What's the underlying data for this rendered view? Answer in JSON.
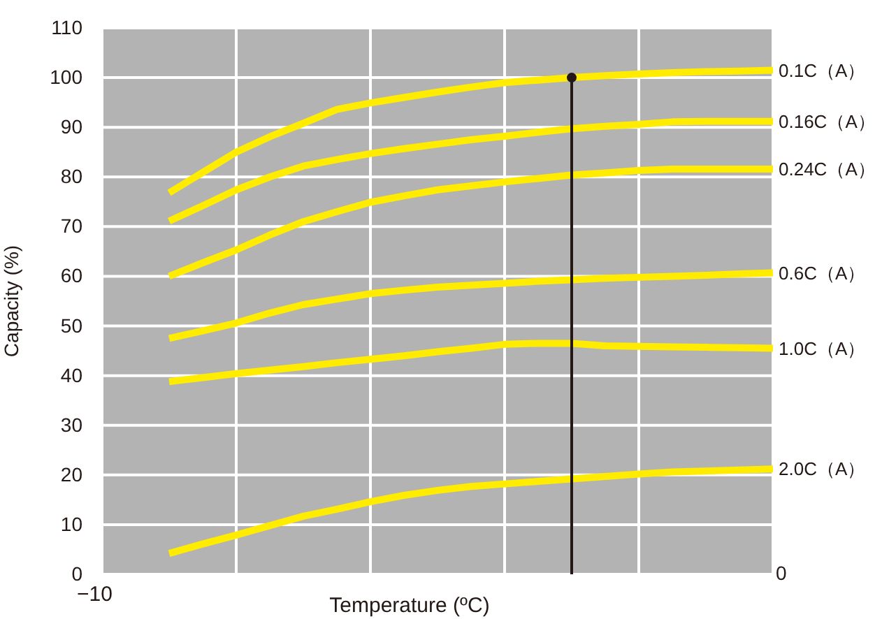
{
  "chart_data": {
    "type": "line",
    "xlabel": "Temperature (ºC)",
    "ylabel": "Capacity (%)",
    "categories": [
      null,
      null,
      null,
      null,
      null,
      null,
      null,
      null,
      null,
      null,
      null,
      null,
      null,
      null,
      null,
      null,
      null,
      null,
      null,
      null,
      null
    ],
    "ylim": [
      0,
      110
    ],
    "yticks": [
      0,
      10,
      20,
      30,
      40,
      50,
      60,
      70,
      80,
      90,
      100,
      110
    ],
    "grid": true,
    "legend": false,
    "marker": "none",
    "line_style": "solid",
    "annotations": [
      "−10",
      "0"
    ],
    "series": [
      {
        "name": "0.1C（A）",
        "color": "#ffec00",
        "values": [
          null,
          null,
          76.8,
          80.9,
          85,
          88.1,
          90.8,
          93.6,
          94.9,
          96,
          97.1,
          98.1,
          99,
          99.5,
          100,
          100.4,
          100.7,
          101,
          101.2,
          101.3,
          101.5
        ]
      },
      {
        "name": "0.16C（A）",
        "color": "#ffec00",
        "values": [
          null,
          null,
          71.1,
          74.2,
          77.4,
          80,
          82.2,
          83.5,
          84.7,
          85.7,
          86.6,
          87.5,
          88.2,
          89,
          89.7,
          90.2,
          90.6,
          91.1,
          91.2,
          91.2,
          91.2
        ]
      },
      {
        "name": "0.24C（A）",
        "color": "#ffec00",
        "values": [
          null,
          null,
          60,
          62.7,
          65.3,
          68.3,
          71,
          73,
          74.9,
          76.2,
          77.4,
          78.2,
          79,
          79.7,
          80.4,
          80.8,
          81.3,
          81.6,
          81.6,
          81.6,
          81.6
        ]
      },
      {
        "name": "0.6C（A）",
        "color": "#ffec00",
        "values": [
          null,
          null,
          47.5,
          49,
          50.6,
          52.6,
          54.3,
          55.4,
          56.5,
          57.2,
          57.8,
          58.2,
          58.6,
          59,
          59.3,
          59.6,
          59.8,
          60,
          60.2,
          60.5,
          60.7
        ]
      },
      {
        "name": "1.0C（A）",
        "color": "#ffec00",
        "values": [
          null,
          null,
          38.8,
          39.6,
          40.4,
          41.1,
          41.8,
          42.6,
          43.3,
          44,
          44.8,
          45.5,
          46.3,
          46.5,
          46.5,
          46,
          45.9,
          45.8,
          45.7,
          45.6,
          45.5
        ]
      },
      {
        "name": "2.0C（A）",
        "color": "#ffec00",
        "values": [
          null,
          null,
          4.2,
          6.1,
          7.9,
          9.8,
          11.7,
          13.1,
          14.6,
          15.9,
          16.9,
          17.7,
          18.2,
          18.7,
          19.2,
          19.7,
          20.2,
          20.6,
          20.8,
          21,
          21.2
        ]
      }
    ]
  }
}
